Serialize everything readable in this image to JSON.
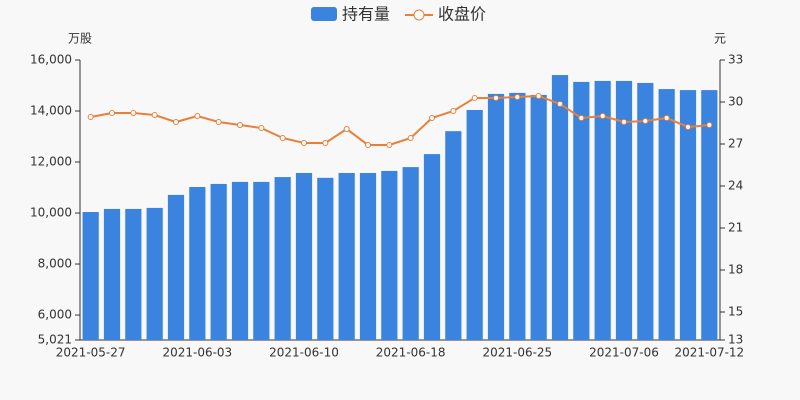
{
  "chart_data": {
    "type": "bar",
    "y_unit": "万股",
    "y2_unit": "元",
    "categories": [
      "2021-05-27",
      null,
      null,
      null,
      null,
      "2021-06-03",
      null,
      null,
      null,
      null,
      "2021-06-10",
      null,
      null,
      null,
      null,
      "2021-06-18",
      null,
      null,
      null,
      null,
      "2021-06-25",
      null,
      null,
      null,
      null,
      "2021-07-06",
      null,
      null,
      null,
      "2021-07-12"
    ],
    "series": [
      {
        "name": "持有量",
        "color": "#3a84e0",
        "values": [
          10040,
          10160,
          10160,
          10200,
          10710,
          11020,
          11140,
          11220,
          11220,
          11410,
          11570,
          11380,
          11570,
          11570,
          11650,
          11800,
          12310,
          13210,
          14040,
          14670,
          14710,
          14630,
          15410,
          15140,
          15180,
          15180,
          15100,
          14860,
          14820,
          14820
        ]
      },
      {
        "name": "收盘价",
        "color": "#e8803a",
        "type": "line",
        "axis": "y2",
        "values": [
          28.93,
          29.21,
          29.21,
          29.07,
          28.57,
          29.0,
          28.57,
          28.36,
          28.14,
          27.43,
          27.07,
          27.07,
          28.07,
          26.93,
          26.93,
          27.43,
          28.86,
          29.36,
          30.29,
          30.29,
          30.36,
          30.43,
          29.86,
          28.86,
          29.0,
          28.57,
          28.64,
          28.86,
          28.21,
          28.36
        ]
      }
    ],
    "ylim": [
      5021,
      16000
    ],
    "yticks": [
      {
        "value": 5021,
        "label": "5,021"
      },
      {
        "value": 6000,
        "label": "6,000"
      },
      {
        "value": 8000,
        "label": "8,000"
      },
      {
        "value": 10000,
        "label": "10,000"
      },
      {
        "value": 12000,
        "label": "12,000"
      },
      {
        "value": 14000,
        "label": "14,000"
      },
      {
        "value": 16000,
        "label": "16,000"
      }
    ],
    "y2lim": [
      13,
      33
    ],
    "y2ticks": [
      13,
      15,
      18,
      21,
      24,
      27,
      30,
      33
    ],
    "grid": false
  }
}
